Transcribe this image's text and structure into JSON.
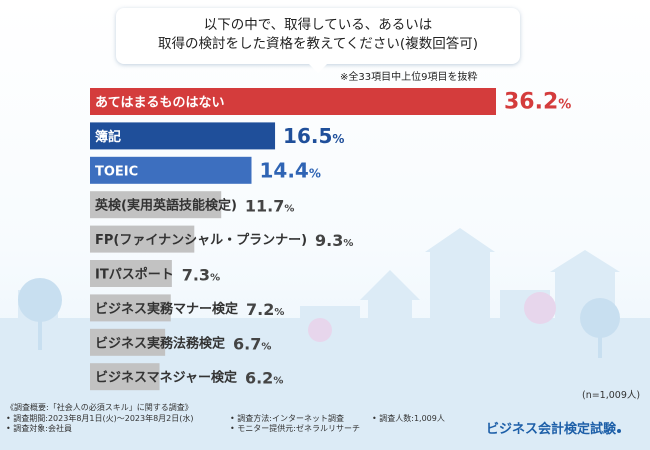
{
  "question": {
    "line1": "以下の中で、取得している、あるいは",
    "line2": "取得の検討をした資格を教えてください(複数回答可)",
    "note": "※全33項目中上位9項目を抜粋"
  },
  "chart_data": {
    "type": "bar",
    "orientation": "horizontal",
    "categories": [
      "あてはまるものはない",
      "簿記",
      "TOEIC",
      "英検(実用英語技能検定)",
      "FP(ファイナンシャル・プランナー)",
      "ITパスポート",
      "ビジネス実務マナー検定",
      "ビジネス実務法務検定",
      "ビジネスマネジャー検定"
    ],
    "values": [
      36.2,
      16.5,
      14.4,
      11.7,
      9.3,
      7.3,
      7.2,
      6.7,
      6.2
    ],
    "unit": "%",
    "xlim": [
      0,
      36.2
    ],
    "bar_colors": [
      "#d43c3c",
      "#1f4f9a",
      "#3d6fbf",
      "#c2c2c2",
      "#c2c2c2",
      "#c2c2c2",
      "#c2c2c2",
      "#c2c2c2",
      "#c2c2c2"
    ],
    "value_colors": [
      "#d43c3c",
      "#1f4f9a",
      "#2f64b4",
      "#444444",
      "#444444",
      "#444444",
      "#444444",
      "#444444",
      "#444444"
    ],
    "label_colors": [
      "#ffffff",
      "#ffffff",
      "#ffffff",
      "#333333",
      "#333333",
      "#333333",
      "#333333",
      "#333333",
      "#333333"
    ]
  },
  "sample_size": "(n=1,009人)",
  "footer": {
    "overview": "《調査概要:「社会人の必須スキル」に関する調査》",
    "period": "• 調査期間:2023年8月1日(火)〜2023年8月2日(水)",
    "target": "• 調査対象:会社員",
    "method": "• 調査方法:インターネット調査",
    "provider": "• モニター提供元:ゼネラルリサーチ",
    "respondents": "• 調査人数:1,009人"
  },
  "brand": "ビジネス会計検定試験"
}
